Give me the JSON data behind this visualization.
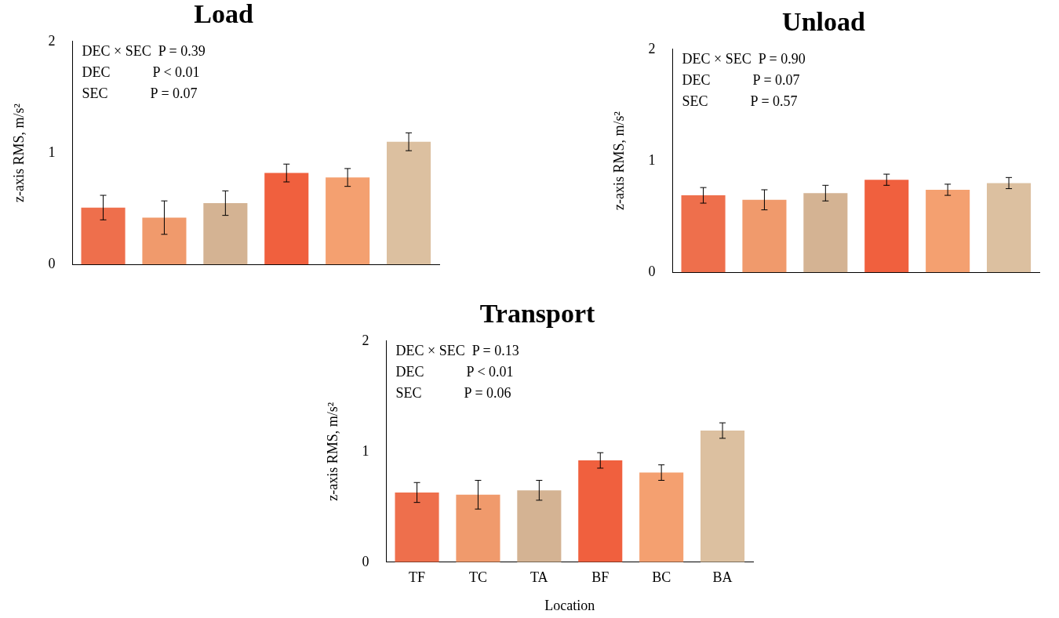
{
  "chart_data": [
    {
      "type": "bar",
      "title": "Load",
      "ylabel": "z-axis RMS, m/s²",
      "categories": [
        null,
        null,
        null,
        null,
        null,
        null
      ],
      "values": [
        0.51,
        0.42,
        0.55,
        0.82,
        0.78,
        1.1
      ],
      "errors": [
        0.11,
        0.15,
        0.11,
        0.08,
        0.08,
        0.08
      ],
      "colors": [
        "#ee6f4c",
        "#f09a6c",
        "#d4b393",
        "#f0603e",
        "#f4a070",
        "#dcc0a0"
      ],
      "ylim": [
        0,
        2
      ],
      "yticks": [
        0,
        1,
        2
      ],
      "grid": false,
      "legend": false,
      "tick_labels": "y",
      "annotations": [
        "DEC × SEC  P = 0.39",
        "DEC            P < 0.01",
        "SEC            P = 0.07"
      ]
    },
    {
      "type": "bar",
      "title": "Unload",
      "ylabel": "z-axis RMS, m/s²",
      "categories": [
        null,
        null,
        null,
        null,
        null,
        null
      ],
      "values": [
        0.69,
        0.65,
        0.71,
        0.83,
        0.74,
        0.8
      ],
      "errors": [
        0.07,
        0.09,
        0.07,
        0.05,
        0.05,
        0.05
      ],
      "colors": [
        "#ee6f4c",
        "#f09a6c",
        "#d4b393",
        "#f0603e",
        "#f4a070",
        "#dcc0a0"
      ],
      "ylim": [
        0,
        2
      ],
      "yticks": [
        0,
        1,
        2
      ],
      "grid": false,
      "legend": false,
      "tick_labels": "y",
      "annotations": [
        "DEC × SEC  P = 0.90",
        "DEC            P = 0.07",
        "SEC            P = 0.57"
      ]
    },
    {
      "type": "bar",
      "title": "Transport",
      "xlabel": "Location",
      "ylabel": "z-axis RMS, m/s²",
      "categories": [
        "TF",
        "TC",
        "TA",
        "BF",
        "BC",
        "BA"
      ],
      "values": [
        0.63,
        0.61,
        0.65,
        0.92,
        0.81,
        1.19
      ],
      "errors": [
        0.09,
        0.13,
        0.09,
        0.07,
        0.07,
        0.07
      ],
      "colors": [
        "#ee6f4c",
        "#f09a6c",
        "#d4b393",
        "#f0603e",
        "#f4a070",
        "#dcc0a0"
      ],
      "ylim": [
        0,
        2
      ],
      "yticks": [
        0,
        1,
        2
      ],
      "grid": false,
      "legend": false,
      "annotations": [
        "DEC × SEC  P = 0.13",
        "DEC            P < 0.01",
        "SEC            P = 0.06"
      ]
    }
  ]
}
